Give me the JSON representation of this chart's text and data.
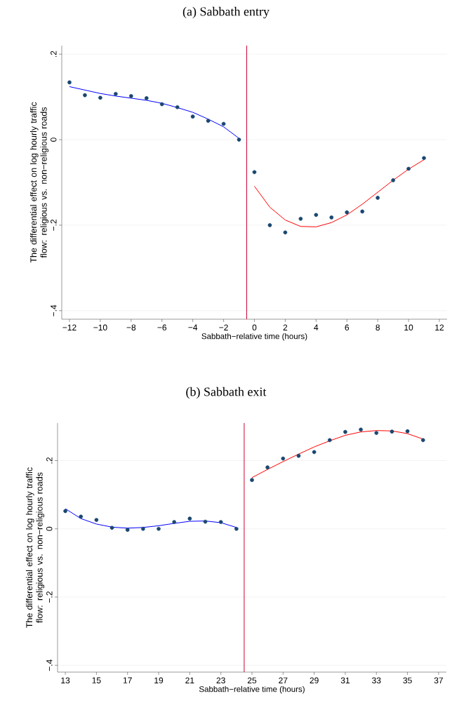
{
  "chart_data": [
    {
      "type": "scatter",
      "title": "(a) Sabbath entry",
      "xlabel": "Sabbath−relative time (hours)",
      "ylabel": "The differential effect on log hourly traffic flow: religious vs. non−religious roads",
      "x": [
        -12,
        -11,
        -10,
        -9,
        -8,
        -7,
        -6,
        -5,
        -4,
        -3,
        -2,
        -1,
        0,
        1,
        2,
        3,
        4,
        5,
        6,
        7,
        8,
        9,
        10,
        11
      ],
      "series": [
        {
          "color": "#1a476f",
          "values": [
            0.134,
            0.104,
            0.098,
            0.107,
            0.102,
            0.097,
            0.083,
            0.076,
            0.054,
            0.044,
            0.037,
            0,
            -0.076,
            -0.2,
            -0.217,
            -0.185,
            -0.176,
            -0.182,
            -0.17,
            -0.168,
            -0.136,
            -0.095,
            -0.068,
            -0.043
          ]
        },
        {
          "type": "line",
          "color": "#0000ff",
          "values": [
            0.124,
            0.116,
            0.108,
            0.102,
            0.097,
            0.092,
            0.085,
            0.075,
            0.064,
            0.048,
            0.03,
            0.003,
            null,
            null,
            null,
            null,
            null,
            null,
            null,
            null,
            null,
            null,
            null,
            null
          ]
        },
        {
          "type": "line",
          "color": "#ff0000",
          "values": [
            null,
            null,
            null,
            null,
            null,
            null,
            null,
            null,
            null,
            null,
            null,
            null,
            -0.109,
            -0.158,
            -0.188,
            -0.203,
            -0.204,
            -0.194,
            -0.176,
            -0.151,
            -0.123,
            -0.095,
            -0.069,
            -0.047
          ]
        }
      ],
      "grid": "y",
      "xlim": [
        -12.5,
        12.5
      ],
      "ylim": [
        -0.42,
        0.22
      ],
      "xticks": [
        {
          "value": -12,
          "label": "−12"
        },
        {
          "value": -10,
          "label": "−10"
        },
        {
          "value": -8,
          "label": "−8"
        },
        {
          "value": -6,
          "label": "−6"
        },
        {
          "value": -4,
          "label": "−4"
        },
        {
          "value": -2,
          "label": "−2"
        },
        0,
        2,
        4,
        6,
        8,
        10,
        12
      ],
      "yticks": [
        {
          "value": -0.4,
          "label": "−.4"
        },
        {
          "value": -0.2,
          "label": "−.2"
        },
        0,
        {
          "value": 0.2,
          "label": ".2"
        }
      ],
      "ref_lines": [
        {
          "axis": "x",
          "value": -0.5,
          "color": "#cc0033"
        }
      ]
    },
    {
      "type": "scatter",
      "title": "(b) Sabbath exit",
      "xlabel": "Sabbath−relative time (hours)",
      "ylabel": "The differential effect on log hourly traffic flow: religious vs. non−religious roads",
      "x": [
        13,
        14,
        15,
        16,
        17,
        18,
        19,
        20,
        21,
        22,
        23,
        24,
        25,
        26,
        27,
        28,
        29,
        30,
        31,
        32,
        33,
        34,
        35,
        36
      ],
      "series": [
        {
          "color": "#1a476f",
          "values": [
            0.052,
            0.036,
            0.026,
            0.003,
            -0.003,
            0,
            0,
            0.02,
            0.03,
            0.021,
            0.02,
            0,
            0.143,
            0.18,
            0.206,
            0.214,
            0.225,
            0.26,
            0.284,
            0.291,
            0.281,
            0.285,
            0.286,
            0.26
          ]
        },
        {
          "type": "line",
          "color": "#0000ff",
          "values": [
            0.059,
            0.03,
            0.014,
            0.005,
            0.002,
            0.004,
            0.009,
            0.016,
            0.022,
            0.023,
            0.018,
            0.004,
            null,
            null,
            null,
            null,
            null,
            null,
            null,
            null,
            null,
            null,
            null,
            null
          ]
        },
        {
          "type": "line",
          "color": "#ff0000",
          "values": [
            null,
            null,
            null,
            null,
            null,
            null,
            null,
            null,
            null,
            null,
            null,
            null,
            0.15,
            0.174,
            0.197,
            0.219,
            0.24,
            0.258,
            0.274,
            0.284,
            0.288,
            0.287,
            0.279,
            0.263
          ]
        }
      ],
      "grid": "y",
      "xlim": [
        12.5,
        37.5
      ],
      "ylim": [
        -0.42,
        0.31
      ],
      "xticks": [
        13,
        15,
        17,
        19,
        21,
        23,
        25,
        27,
        29,
        31,
        33,
        35,
        37
      ],
      "yticks": [
        {
          "value": -0.4,
          "label": "−.4"
        },
        {
          "value": -0.2,
          "label": "−.2"
        },
        0,
        {
          "value": 0.2,
          "label": ".2"
        }
      ],
      "ref_lines": [
        {
          "axis": "x",
          "value": 24.5,
          "color": "#cc0033"
        }
      ]
    }
  ]
}
